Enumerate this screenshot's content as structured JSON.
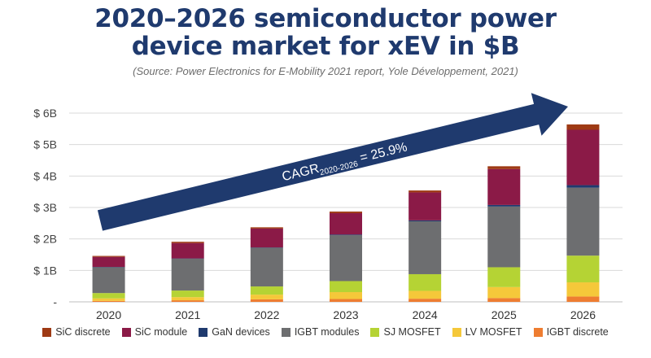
{
  "header": {
    "title_line1": "2020–2026 semiconductor power",
    "title_line2": "device market for xEV in $B",
    "subtitle": "(Source: Power Electronics for E-Mobility 2021 report, Yole Développement, 2021)"
  },
  "chart_data": {
    "type": "bar",
    "stacked": true,
    "title": "2020–2026 semiconductor power device market for xEV in $B",
    "xlabel": "",
    "ylabel": "",
    "ylim": [
      0,
      6
    ],
    "yticks": [
      {
        "value": 0,
        "label": "-"
      },
      {
        "value": 1,
        "label": "$ 1B"
      },
      {
        "value": 2,
        "label": "$ 2B"
      },
      {
        "value": 3,
        "label": "$ 3B"
      },
      {
        "value": 4,
        "label": "$ 4B"
      },
      {
        "value": 5,
        "label": "$ 5B"
      },
      {
        "value": 6,
        "label": "$ 6B"
      }
    ],
    "grid": true,
    "categories": [
      "2020",
      "2021",
      "2022",
      "2023",
      "2024",
      "2025",
      "2026"
    ],
    "series": [
      {
        "name": "IGBT discrete",
        "color": "#ee7d31",
        "values": [
          0.03,
          0.05,
          0.08,
          0.09,
          0.1,
          0.12,
          0.17
        ]
      },
      {
        "name": "LV MOSFET",
        "color": "#f5c83a",
        "values": [
          0.08,
          0.1,
          0.15,
          0.22,
          0.25,
          0.35,
          0.45
        ]
      },
      {
        "name": "SJ MOSFET",
        "color": "#b5d334",
        "values": [
          0.17,
          0.21,
          0.26,
          0.35,
          0.53,
          0.63,
          0.85
        ]
      },
      {
        "name": "IGBT modules",
        "color": "#6d6e70",
        "values": [
          0.82,
          1.01,
          1.23,
          1.46,
          1.68,
          1.93,
          2.16
        ]
      },
      {
        "name": "GaN devices",
        "color": "#1f3a6e",
        "values": [
          0.01,
          0.01,
          0.01,
          0.02,
          0.03,
          0.05,
          0.08
        ]
      },
      {
        "name": "SiC module",
        "color": "#8b1a47",
        "values": [
          0.32,
          0.49,
          0.6,
          0.68,
          0.89,
          1.14,
          1.76
        ]
      },
      {
        "name": "SiC discrete",
        "color": "#9e3a14",
        "values": [
          0.03,
          0.04,
          0.04,
          0.05,
          0.06,
          0.09,
          0.17
        ]
      }
    ],
    "legend_order": [
      "SiC discrete",
      "SiC module",
      "GaN devices",
      "IGBT modules",
      "SJ MOSFET",
      "LV MOSFET",
      "IGBT discrete"
    ],
    "legend_position": "bottom",
    "annotation": {
      "prefix": "CAGR",
      "subscript": "2020-2026",
      "suffix": " = 25.9%",
      "arrow_color": "#1f3a6e",
      "text_color": "#ffffff"
    }
  }
}
